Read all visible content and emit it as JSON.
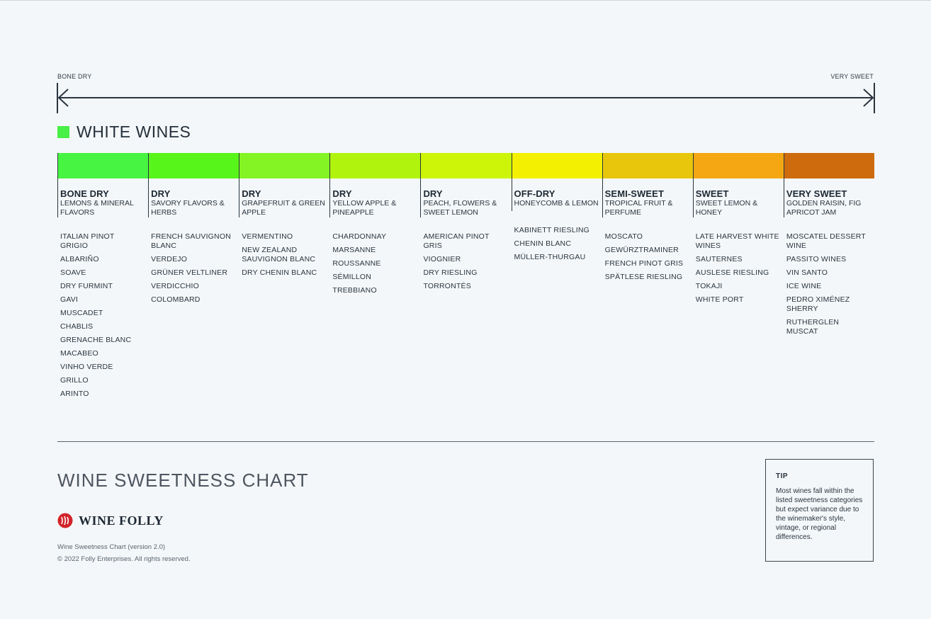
{
  "scale": {
    "left_label": "BONE DRY",
    "right_label": "VERY SWEET"
  },
  "section": {
    "title": "WHITE WINES",
    "swatch_color": "#47ef47"
  },
  "columns": [
    {
      "level": "BONE DRY",
      "flavor": "LEMONS & MINERAL FLAVORS",
      "color": "#48f442",
      "wines": [
        "ITALIAN PINOT GRIGIO",
        "ALBARIÑO",
        "SOAVE",
        "DRY FURMINT",
        "GAVI",
        "MUSCADET",
        "CHABLIS",
        "GRENACHE BLANC",
        "MACABEO",
        "VINHO VERDE",
        "GRILLO",
        "ARINTO"
      ]
    },
    {
      "level": "DRY",
      "flavor": "SAVORY FLAVORS & HERBS",
      "color": "#58f51a",
      "wines": [
        "FRENCH SAUVIGNON BLANC",
        "VERDEJO",
        "GRÜNER VELTLINER",
        "VERDICCHIO",
        "COLOMBARD"
      ]
    },
    {
      "level": "DRY",
      "flavor": "GRAPEFRUIT & GREEN APPLE",
      "color": "#84f425",
      "wines": [
        "VERMENTINO",
        "NEW ZEALAND SAUVIGNON BLANC",
        "DRY CHENIN BLANC"
      ]
    },
    {
      "level": "DRY",
      "flavor": "YELLOW APPLE & PINEAPPLE",
      "color": "#b0f40e",
      "wines": [
        "CHARDONNAY",
        "MARSANNE",
        "ROUSSANNE",
        "SÉMILLON",
        "TREBBIANO"
      ]
    },
    {
      "level": "DRY",
      "flavor": "PEACH, FLOWERS & SWEET LEMON",
      "color": "#cdf508",
      "wines": [
        "AMERICAN PINOT GRIS",
        "VIOGNIER",
        "DRY RIESLING",
        "TORRONTÉS"
      ]
    },
    {
      "level": "OFF-DRY",
      "flavor": "HONEYCOMB & LEMON",
      "color": "#f3f001",
      "wines": [
        "KABINETT RIESLING",
        "CHENIN BLANC",
        "MÜLLER-THURGAU"
      ]
    },
    {
      "level": "SEMI-SWEET",
      "flavor": "TROPICAL FRUIT & PERFUME",
      "color": "#e8c60b",
      "wines": [
        "MOSCATO",
        "GEWÜRZTRAMINER",
        "FRENCH PINOT GRIS",
        "SPÄTLESE RIESLING"
      ]
    },
    {
      "level": "SWEET",
      "flavor": "SWEET LEMON & HONEY",
      "color": "#f4a713",
      "wines": [
        "LATE HARVEST WHITE WINES",
        "SAUTERNES",
        "AUSLESE RIESLING",
        "TOKAJI",
        "WHITE PORT"
      ]
    },
    {
      "level": "VERY SWEET",
      "flavor": "GOLDEN RAISIN, FIG APRICOT JAM",
      "color": "#cd6b0d",
      "wines": [
        "MOSCATEL DESSERT WINE",
        "PASSITO WINES",
        "VIN SANTO",
        "ICE WINE",
        "PEDRO XIMÉNEZ SHERRY",
        "RUTHERGLEN MUSCAT"
      ]
    }
  ],
  "footer": {
    "title": "WINE SWEETNESS CHART",
    "brand": "WINE FOLLY",
    "brand_color": "#d2232a",
    "version": "Wine Sweetness Chart (version 2.0)",
    "copyright": "© 2022 Folly Enterprises. All rights reserved."
  },
  "tip": {
    "title": "TIP",
    "text": "Most wines fall within the listed sweetness categories but expect variance due to the winemaker's style, vintage, or regional differences."
  }
}
